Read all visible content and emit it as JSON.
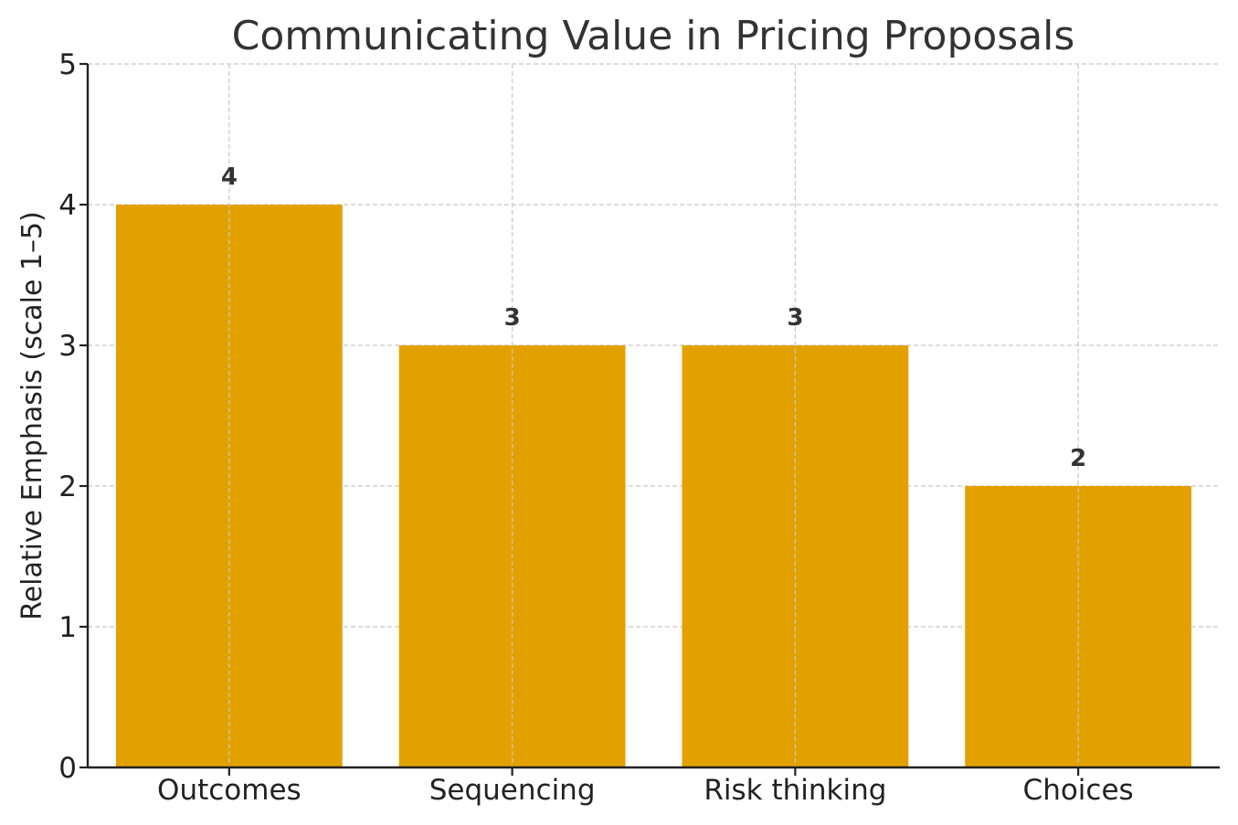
{
  "chart_data": {
    "type": "bar",
    "title": "Communicating Value in Pricing Proposals",
    "xlabel": "",
    "ylabel": "Relative Emphasis (scale 1–5)",
    "categories": [
      "Outcomes",
      "Sequencing",
      "Risk thinking",
      "Choices"
    ],
    "values": [
      4,
      3,
      3,
      2
    ],
    "data_labels": [
      "4",
      "3",
      "3",
      "2"
    ],
    "ylim": [
      0,
      5
    ],
    "yticks": [
      0,
      1,
      2,
      3,
      4,
      5
    ],
    "ytick_labels": [
      "0",
      "1",
      "2",
      "3",
      "4",
      "5"
    ],
    "grid": true,
    "legend": "none",
    "bar_color": "#E3A100"
  }
}
